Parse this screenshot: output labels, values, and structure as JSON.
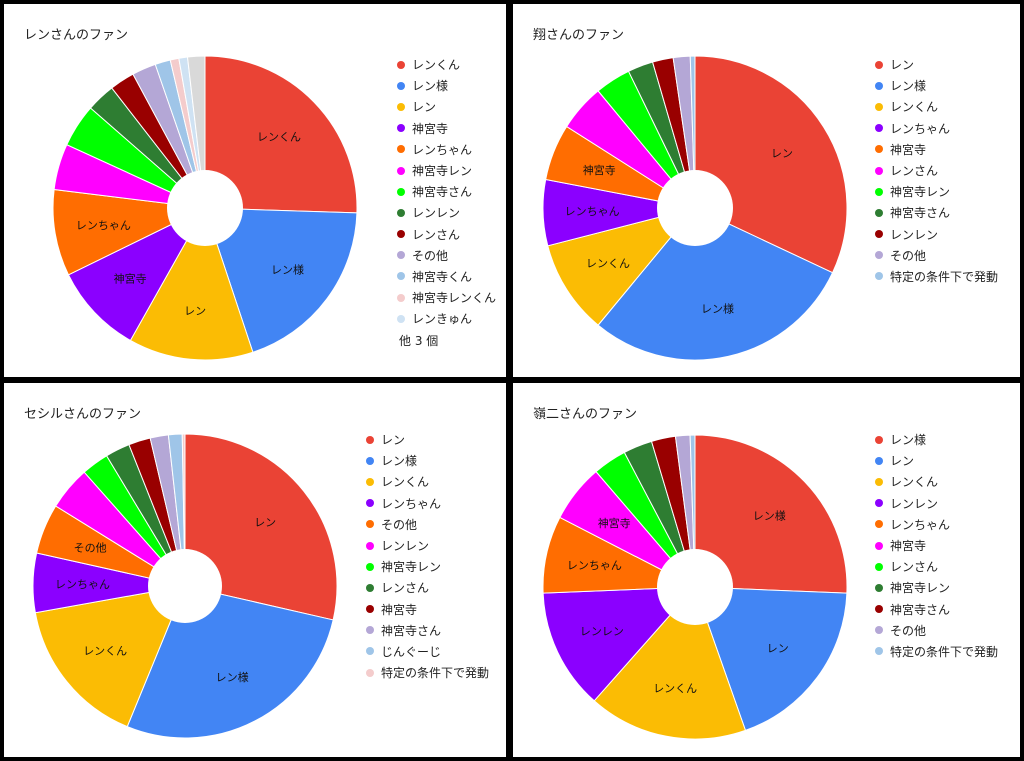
{
  "chart_data": [
    {
      "type": "pie",
      "donut": true,
      "title": "レンさんのファン",
      "categories": [
        "レンくん",
        "レン様",
        "レン",
        "神宮寺",
        "レンちゃん",
        "神宮寺レン",
        "神宮寺さん",
        "レンレン",
        "レンさん",
        "その他",
        "神宮寺くん",
        "神宮寺レンくん",
        "レンきゅん",
        "他 3 個"
      ],
      "values": [
        25.0,
        19.0,
        13.0,
        9.4,
        9.0,
        4.8,
        4.5,
        3.0,
        2.6,
        2.5,
        1.6,
        0.9,
        0.9,
        1.8
      ],
      "colors": [
        "#ea4335",
        "#4285f4",
        "#fbbc04",
        "#8b00ff",
        "#ff6d01",
        "#ff00ff",
        "#00ff00",
        "#2e7d32",
        "#990000",
        "#b4a7d6",
        "#9fc5e8",
        "#f4cccc",
        "#cfe2f3",
        "#d9d9d9"
      ],
      "slice_labels": [
        "レンくん",
        "レン様",
        "レン",
        "神宮寺",
        "レンちゃん",
        "",
        "",
        "",
        "",
        "",
        "",
        "",
        "",
        ""
      ],
      "legend_labels": [
        "レンくん",
        "レン様",
        "レン",
        "神宮寺",
        "レンちゃん",
        "神宮寺レン",
        "神宮寺さん",
        "レンレン",
        "レンさん",
        "その他",
        "神宮寺くん",
        "神宮寺レンくん",
        "レンきゅん"
      ],
      "legend_more": "他 3 個",
      "legend_position": "right"
    },
    {
      "type": "pie",
      "donut": true,
      "title": "翔さんのファン",
      "categories": [
        "レン",
        "レン様",
        "レンくん",
        "レンちゃん",
        "神宮寺",
        "レンさん",
        "神宮寺レン",
        "神宮寺さん",
        "レンレン",
        "その他",
        "特定の条件下で発動"
      ],
      "values": [
        32.0,
        29.0,
        10.0,
        7.0,
        6.0,
        5.0,
        3.8,
        2.7,
        2.2,
        1.8,
        0.5
      ],
      "colors": [
        "#ea4335",
        "#4285f4",
        "#fbbc04",
        "#8b00ff",
        "#ff6d01",
        "#ff00ff",
        "#00ff00",
        "#2e7d32",
        "#990000",
        "#b4a7d6",
        "#9fc5e8"
      ],
      "slice_labels": [
        "レン",
        "レン様",
        "レンくん",
        "レンちゃん",
        "神宮寺",
        "",
        "",
        "",
        "",
        "",
        ""
      ],
      "legend_labels": [
        "レン",
        "レン様",
        "レンくん",
        "レンちゃん",
        "神宮寺",
        "レンさん",
        "神宮寺レン",
        "神宮寺さん",
        "レンレン",
        "その他",
        "特定の条件下で発動"
      ],
      "legend_position": "right"
    },
    {
      "type": "pie",
      "donut": true,
      "title": "セシルさんのファン",
      "categories": [
        "レン",
        "レン様",
        "レンくん",
        "レンちゃん",
        "その他",
        "レンレン",
        "神宮寺レン",
        "レンさん",
        "神宮寺",
        "神宮寺さん",
        "じんぐーじ",
        "特定の条件下で発動"
      ],
      "values": [
        29.5,
        28.5,
        16.5,
        6.5,
        5.5,
        4.8,
        3.0,
        2.7,
        2.4,
        2.0,
        1.5,
        0.3
      ],
      "colors": [
        "#ea4335",
        "#4285f4",
        "#fbbc04",
        "#8b00ff",
        "#ff6d01",
        "#ff00ff",
        "#00ff00",
        "#2e7d32",
        "#990000",
        "#b4a7d6",
        "#9fc5e8",
        "#f4cccc"
      ],
      "slice_labels": [
        "レン",
        "レン様",
        "レンくん",
        "レンちゃん",
        "その他",
        "",
        "",
        "",
        "",
        "",
        "",
        ""
      ],
      "legend_labels": [
        "レン",
        "レン様",
        "レンくん",
        "レンちゃん",
        "その他",
        "レンレン",
        "神宮寺レン",
        "レンさん",
        "神宮寺",
        "神宮寺さん",
        "じんぐーじ",
        "特定の条件下で発動"
      ],
      "legend_position": "right"
    },
    {
      "type": "pie",
      "donut": true,
      "title": "嶺二さんのファン",
      "categories": [
        "レン様",
        "レン",
        "レンくん",
        "レンレン",
        "レンちゃん",
        "神宮寺",
        "レンさん",
        "神宮寺レン",
        "神宮寺さん",
        "その他",
        "特定の条件下で発動"
      ],
      "values": [
        25.0,
        18.5,
        16.5,
        12.5,
        8.0,
        6.0,
        3.5,
        3.0,
        2.5,
        1.5,
        0.5
      ],
      "colors": [
        "#ea4335",
        "#4285f4",
        "#fbbc04",
        "#8b00ff",
        "#ff6d01",
        "#ff00ff",
        "#00ff00",
        "#2e7d32",
        "#990000",
        "#b4a7d6",
        "#9fc5e8"
      ],
      "slice_labels": [
        "レン様",
        "レン",
        "レンくん",
        "レンレン",
        "レンちゃん",
        "神宮寺",
        "",
        "",
        "",
        "",
        ""
      ],
      "legend_labels": [
        "レン様",
        "レン",
        "レンくん",
        "レンレン",
        "レンちゃん",
        "神宮寺",
        "レンさん",
        "神宮寺レン",
        "神宮寺さん",
        "その他",
        "特定の条件下で発動"
      ],
      "legend_position": "right"
    }
  ]
}
